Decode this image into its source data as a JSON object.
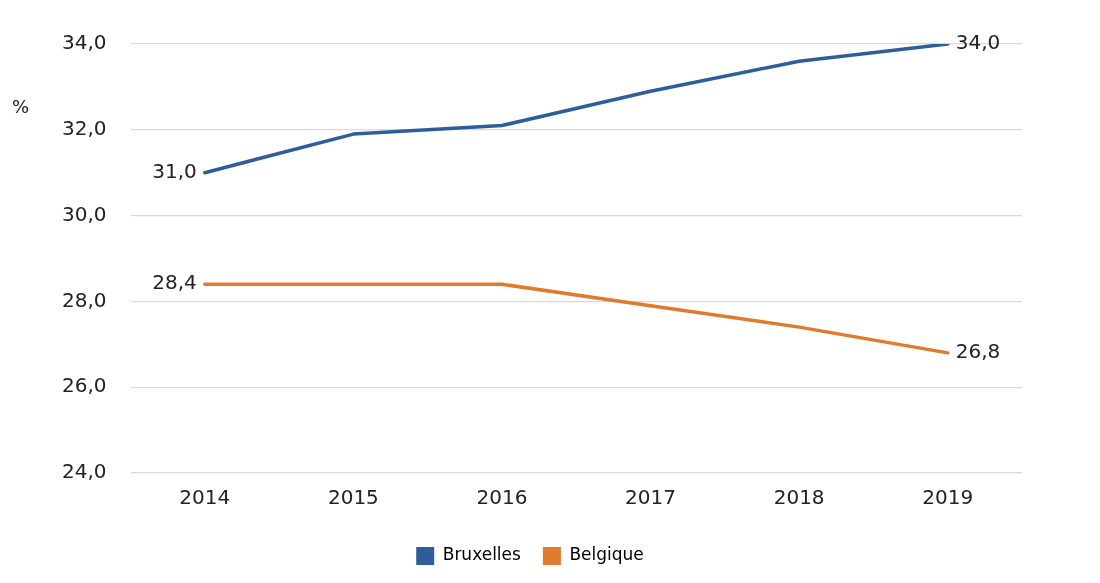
{
  "chart_data": {
    "type": "line",
    "ylabel": "%",
    "categories": [
      "2014",
      "2015",
      "2016",
      "2017",
      "2018",
      "2019"
    ],
    "series": [
      {
        "name": "Bruxelles",
        "color": "#2e5e99",
        "values": [
          31.0,
          31.9,
          32.1,
          32.9,
          33.6,
          34.0
        ],
        "value_labels": [
          "31,0",
          null,
          null,
          null,
          null,
          "34,0"
        ]
      },
      {
        "name": "Belgique",
        "color": "#e07a2c",
        "values": [
          28.4,
          28.4,
          28.4,
          27.9,
          27.4,
          26.8
        ],
        "value_labels": [
          "28,4",
          null,
          null,
          null,
          null,
          "26,8"
        ]
      }
    ],
    "ylim": [
      24,
      34
    ],
    "yticks": [
      {
        "value": 24,
        "label": "24,0"
      },
      {
        "value": 26,
        "label": "26,0"
      },
      {
        "value": 28,
        "label": "28,0"
      },
      {
        "value": 30,
        "label": "30,0"
      },
      {
        "value": 32,
        "label": "32,0"
      },
      {
        "value": 34,
        "label": "34,0"
      }
    ],
    "grid": "y",
    "legend": "bottom",
    "marker": "none",
    "line_style": "solid"
  }
}
